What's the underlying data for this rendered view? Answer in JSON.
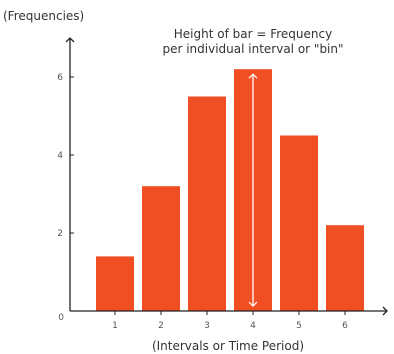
{
  "chart_data": {
    "type": "bar",
    "categories": [
      "1",
      "2",
      "3",
      "4",
      "5",
      "6"
    ],
    "values": [
      1.4,
      3.2,
      5.5,
      6.2,
      4.5,
      2.2
    ],
    "ylabel": "(Frequencies)",
    "xlabel": "(Intervals or Time Period)",
    "y_ticks": [
      "0",
      "2",
      "4",
      "6"
    ],
    "ylim": [
      0,
      7
    ],
    "grid": false,
    "annotation": {
      "line1": "Height of bar = Frequency",
      "line2": "per individual interval or  \"bin\"",
      "category": "4"
    },
    "colors": {
      "bar": "#F04E23",
      "axis": "#222222",
      "arrow": "#ffffff"
    }
  }
}
